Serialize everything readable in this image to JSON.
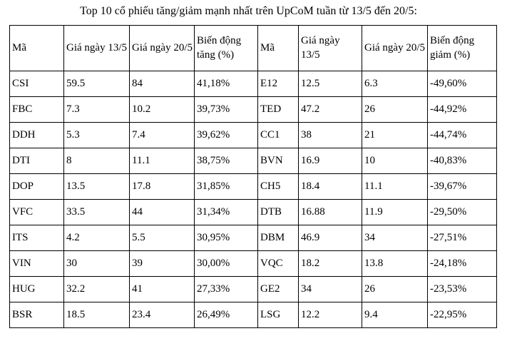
{
  "title": "Top 10 cổ phiếu tăng/giảm mạnh nhất trên UpCoM tuần từ 13/5 đến 20/5:",
  "table": {
    "headers": [
      "Mã",
      "Giá ngày 13/5",
      "Giá ngày 20/5",
      "Biến động tăng (%)",
      "Mã",
      "Giá ngày 13/5",
      "Giá ngày 20/5",
      "Biến động giảm (%)"
    ],
    "rows": [
      [
        "CSI",
        "59.5",
        "84",
        "41,18%",
        "E12",
        "12.5",
        "6.3",
        "-49,60%"
      ],
      [
        "FBC",
        "7.3",
        "10.2",
        "39,73%",
        "TED",
        "47.2",
        "26",
        "-44,92%"
      ],
      [
        "DDH",
        "5.3",
        "7.4",
        "39,62%",
        "CC1",
        "38",
        "21",
        "-44,74%"
      ],
      [
        "DTI",
        "8",
        "11.1",
        "38,75%",
        "BVN",
        "16.9",
        "10",
        "-40,83%"
      ],
      [
        "DOP",
        "13.5",
        "17.8",
        "31,85%",
        "CH5",
        "18.4",
        "11.1",
        "-39,67%"
      ],
      [
        "VFC",
        "33.5",
        "44",
        "31,34%",
        "DTB",
        "16.88",
        "11.9",
        "-29,50%"
      ],
      [
        "ITS",
        "4.2",
        "5.5",
        "30,95%",
        "DBM",
        "46.9",
        "34",
        "-27,51%"
      ],
      [
        "VIN",
        "30",
        "39",
        "30,00%",
        "VQC",
        "18.2",
        "13.8",
        "-24,18%"
      ],
      [
        "HUG",
        "32.2",
        "41",
        "27,33%",
        "GE2",
        "34",
        "26",
        "-23,53%"
      ],
      [
        "BSR",
        "18.5",
        "23.4",
        "26,49%",
        "LSG",
        "12.2",
        "9.4",
        "-22,95%"
      ]
    ]
  },
  "colors": {
    "text": "#000000",
    "border": "#000000",
    "background": "#ffffff"
  }
}
